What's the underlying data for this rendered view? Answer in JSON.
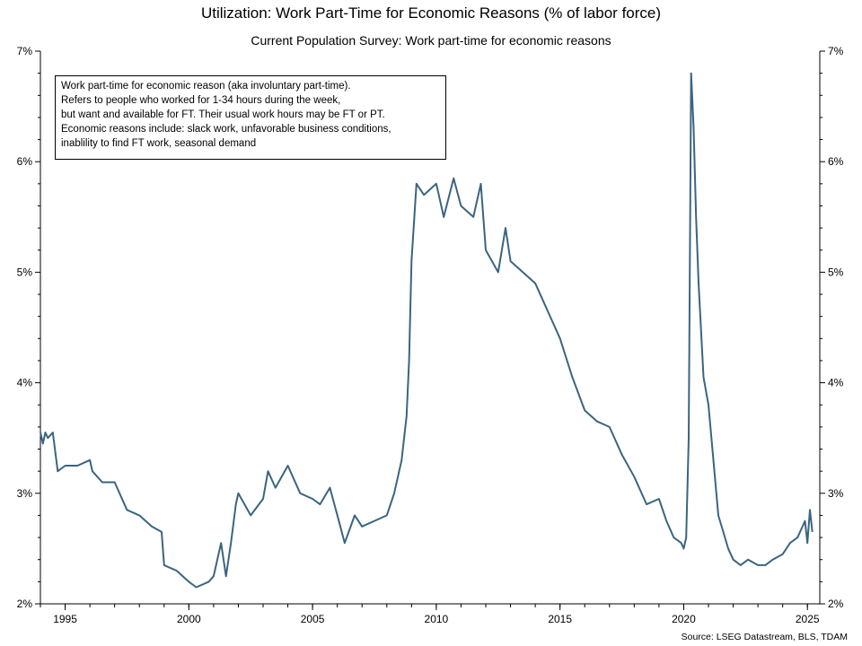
{
  "title": "Utilization: Work Part-Time for Economic Reasons (% of labor force)",
  "subtitle": "Current Population Survey: Work part-time for economic reasons",
  "source": "Source: LSEG Datastream, BLS, TDAM",
  "note_lines": [
    "Work part-time for economic reason (aka involuntary part-time).",
    "Refers to people who worked for 1-34 hours during the week,",
    "but want and available for FT. Their usual work hours may be FT or PT.",
    "Economic reasons include: slack work, unfavorable business conditions,",
    "inablility to find FT work, seasonal demand"
  ],
  "colors": {
    "line": "#3a6580",
    "axis": "#000000"
  },
  "chart_data": {
    "type": "line",
    "xlim": [
      1994.0,
      2025.5
    ],
    "ylim": [
      2,
      7
    ],
    "y_unit": "%",
    "grid": false,
    "y_ticks": [
      {
        "value": 2,
        "label": "2%"
      },
      {
        "value": 3,
        "label": "3%"
      },
      {
        "value": 4,
        "label": "4%"
      },
      {
        "value": 5,
        "label": "5%"
      },
      {
        "value": 6,
        "label": "6%"
      },
      {
        "value": 7,
        "label": "7%"
      }
    ],
    "x_ticks": [
      {
        "value": 1995,
        "label": "1995"
      },
      {
        "value": 2000,
        "label": "2000"
      },
      {
        "value": 2005,
        "label": "2005"
      },
      {
        "value": 2010,
        "label": "2010"
      },
      {
        "value": 2015,
        "label": "2015"
      },
      {
        "value": 2020,
        "label": "2020"
      },
      {
        "value": 2025,
        "label": "2025"
      }
    ],
    "series": [
      {
        "x": [
          1994.0,
          1994.1,
          1994.2,
          1994.3,
          1994.5,
          1994.7,
          1995.0,
          1995.5,
          1996.0,
          1996.1,
          1996.5,
          1997.0,
          1997.5,
          1998.0,
          1998.5,
          1998.9,
          1999.0,
          1999.5,
          2000.0,
          2000.3,
          2000.8,
          2001.0,
          2001.3,
          2001.5,
          2001.7,
          2001.9,
          2002.0,
          2002.5,
          2003.0,
          2003.2,
          2003.5,
          2004.0,
          2004.5,
          2005.0,
          2005.3,
          2005.7,
          2006.0,
          2006.3,
          2006.7,
          2007.0,
          2007.5,
          2008.0,
          2008.3,
          2008.6,
          2008.8,
          2008.9,
          2009.0,
          2009.2,
          2009.5,
          2010.0,
          2010.3,
          2010.7,
          2011.0,
          2011.5,
          2011.8,
          2012.0,
          2012.5,
          2012.8,
          2013.0,
          2013.5,
          2014.0,
          2014.5,
          2015.0,
          2015.5,
          2016.0,
          2016.5,
          2017.0,
          2017.5,
          2018.0,
          2018.5,
          2019.0,
          2019.3,
          2019.6,
          2019.9,
          2020.0,
          2020.1,
          2020.2,
          2020.3,
          2020.4,
          2020.5,
          2020.6,
          2020.8,
          2021.0,
          2021.2,
          2021.4,
          2021.6,
          2021.8,
          2022.0,
          2022.3,
          2022.6,
          2023.0,
          2023.3,
          2023.6,
          2024.0,
          2024.3,
          2024.6,
          2024.9,
          2025.0,
          2025.1,
          2025.2
        ],
        "y": [
          3.55,
          3.45,
          3.55,
          3.5,
          3.55,
          3.2,
          3.25,
          3.25,
          3.3,
          3.2,
          3.1,
          3.1,
          2.85,
          2.8,
          2.7,
          2.65,
          2.35,
          2.3,
          2.2,
          2.15,
          2.2,
          2.25,
          2.55,
          2.25,
          2.55,
          2.9,
          3.0,
          2.8,
          2.95,
          3.2,
          3.05,
          3.25,
          3.0,
          2.95,
          2.9,
          3.05,
          2.8,
          2.55,
          2.8,
          2.7,
          2.75,
          2.8,
          3.0,
          3.3,
          3.7,
          4.2,
          5.1,
          5.8,
          5.7,
          5.8,
          5.5,
          5.85,
          5.6,
          5.5,
          5.8,
          5.2,
          5.0,
          5.4,
          5.1,
          5.0,
          4.9,
          4.65,
          4.4,
          4.05,
          3.75,
          3.65,
          3.6,
          3.35,
          3.15,
          2.9,
          2.95,
          2.75,
          2.6,
          2.55,
          2.5,
          2.6,
          3.5,
          6.8,
          6.3,
          5.5,
          4.9,
          4.05,
          3.8,
          3.3,
          2.8,
          2.65,
          2.5,
          2.4,
          2.35,
          2.4,
          2.35,
          2.35,
          2.4,
          2.45,
          2.55,
          2.6,
          2.75,
          2.55,
          2.85,
          2.65
        ]
      }
    ]
  }
}
